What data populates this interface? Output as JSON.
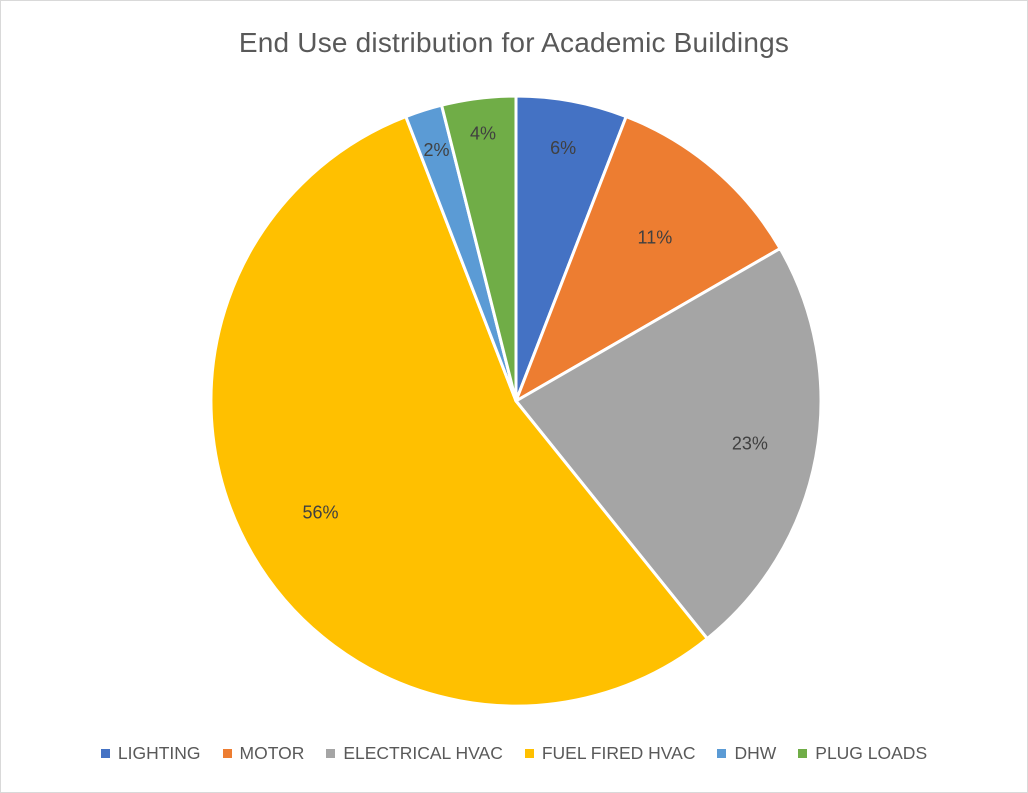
{
  "chart_data": {
    "type": "pie",
    "title": "End Use distribution for Academic Buildings",
    "categories": [
      "LIGHTING",
      "MOTOR",
      "ELECTRICAL HVAC",
      "FUEL FIRED HVAC",
      "DHW",
      "PLUG LOADS"
    ],
    "values": [
      6,
      11,
      23,
      56,
      2,
      4
    ],
    "labels": [
      "6%",
      "11%",
      "23%",
      "56%",
      "2%",
      "4%"
    ],
    "colors": [
      "#4472C4",
      "#ED7D31",
      "#A5A5A5",
      "#FFC000",
      "#5B9BD5",
      "#70AD47"
    ],
    "legend_position": "bottom",
    "start_angle": "12 o'clock",
    "direction": "clockwise"
  }
}
